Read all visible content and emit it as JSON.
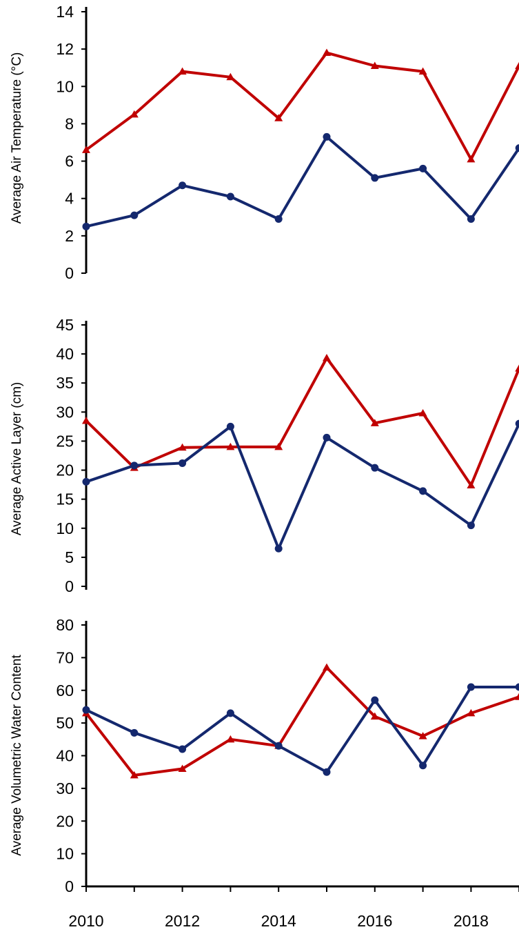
{
  "chart_data": [
    {
      "type": "line",
      "title": "",
      "ylabel": "Average Air Temperature (°C)",
      "xlabel": "",
      "ylim": [
        0,
        14
      ],
      "y_ticks": [
        0,
        2,
        4,
        6,
        8,
        10,
        12,
        14
      ],
      "x": [
        2010,
        2011,
        2012,
        2013,
        2014,
        2015,
        2016,
        2017,
        2018,
        2019
      ],
      "series": [
        {
          "color": "#C00000",
          "marker": "triangle",
          "values": [
            6.6,
            8.5,
            10.8,
            10.5,
            8.3,
            11.8,
            11.1,
            10.8,
            6.1,
            11.1
          ]
        },
        {
          "color": "#14286E",
          "marker": "circle",
          "values": [
            2.5,
            3.1,
            4.7,
            4.1,
            2.9,
            7.3,
            5.1,
            5.6,
            2.9,
            6.7
          ]
        }
      ]
    },
    {
      "type": "line",
      "title": "",
      "ylabel": "Average Active Layer (cm)",
      "xlabel": "",
      "ylim": [
        0,
        45
      ],
      "y_ticks": [
        0,
        5,
        10,
        15,
        20,
        25,
        30,
        35,
        40,
        45
      ],
      "x": [
        2010,
        2011,
        2012,
        2013,
        2014,
        2015,
        2016,
        2017,
        2018,
        2019
      ],
      "series": [
        {
          "color": "#C00000",
          "marker": "triangle",
          "values": [
            28.5,
            20.4,
            23.9,
            24.0,
            24.0,
            39.3,
            28.1,
            29.8,
            17.4,
            37.5
          ]
        },
        {
          "color": "#14286E",
          "marker": "circle",
          "values": [
            18.0,
            20.8,
            21.2,
            27.5,
            6.5,
            25.6,
            20.4,
            16.4,
            10.5,
            28.0
          ]
        }
      ]
    },
    {
      "type": "line",
      "title": "",
      "ylabel": "Average Volumetric Water Content",
      "xlabel": "",
      "ylim": [
        0,
        80
      ],
      "y_ticks": [
        0,
        10,
        20,
        30,
        40,
        50,
        60,
        70,
        80
      ],
      "x": [
        2010,
        2011,
        2012,
        2013,
        2014,
        2015,
        2016,
        2017,
        2018,
        2019
      ],
      "x_tick_labels": [
        "2010",
        "2012",
        "2014",
        "2016",
        "2018"
      ],
      "series": [
        {
          "color": "#C00000",
          "marker": "triangle",
          "values": [
            53,
            34,
            36,
            45,
            43,
            67,
            52,
            46,
            53,
            58
          ]
        },
        {
          "color": "#14286E",
          "marker": "circle",
          "values": [
            54,
            47,
            42,
            53,
            43,
            35,
            57,
            37,
            61,
            61
          ]
        }
      ]
    }
  ]
}
